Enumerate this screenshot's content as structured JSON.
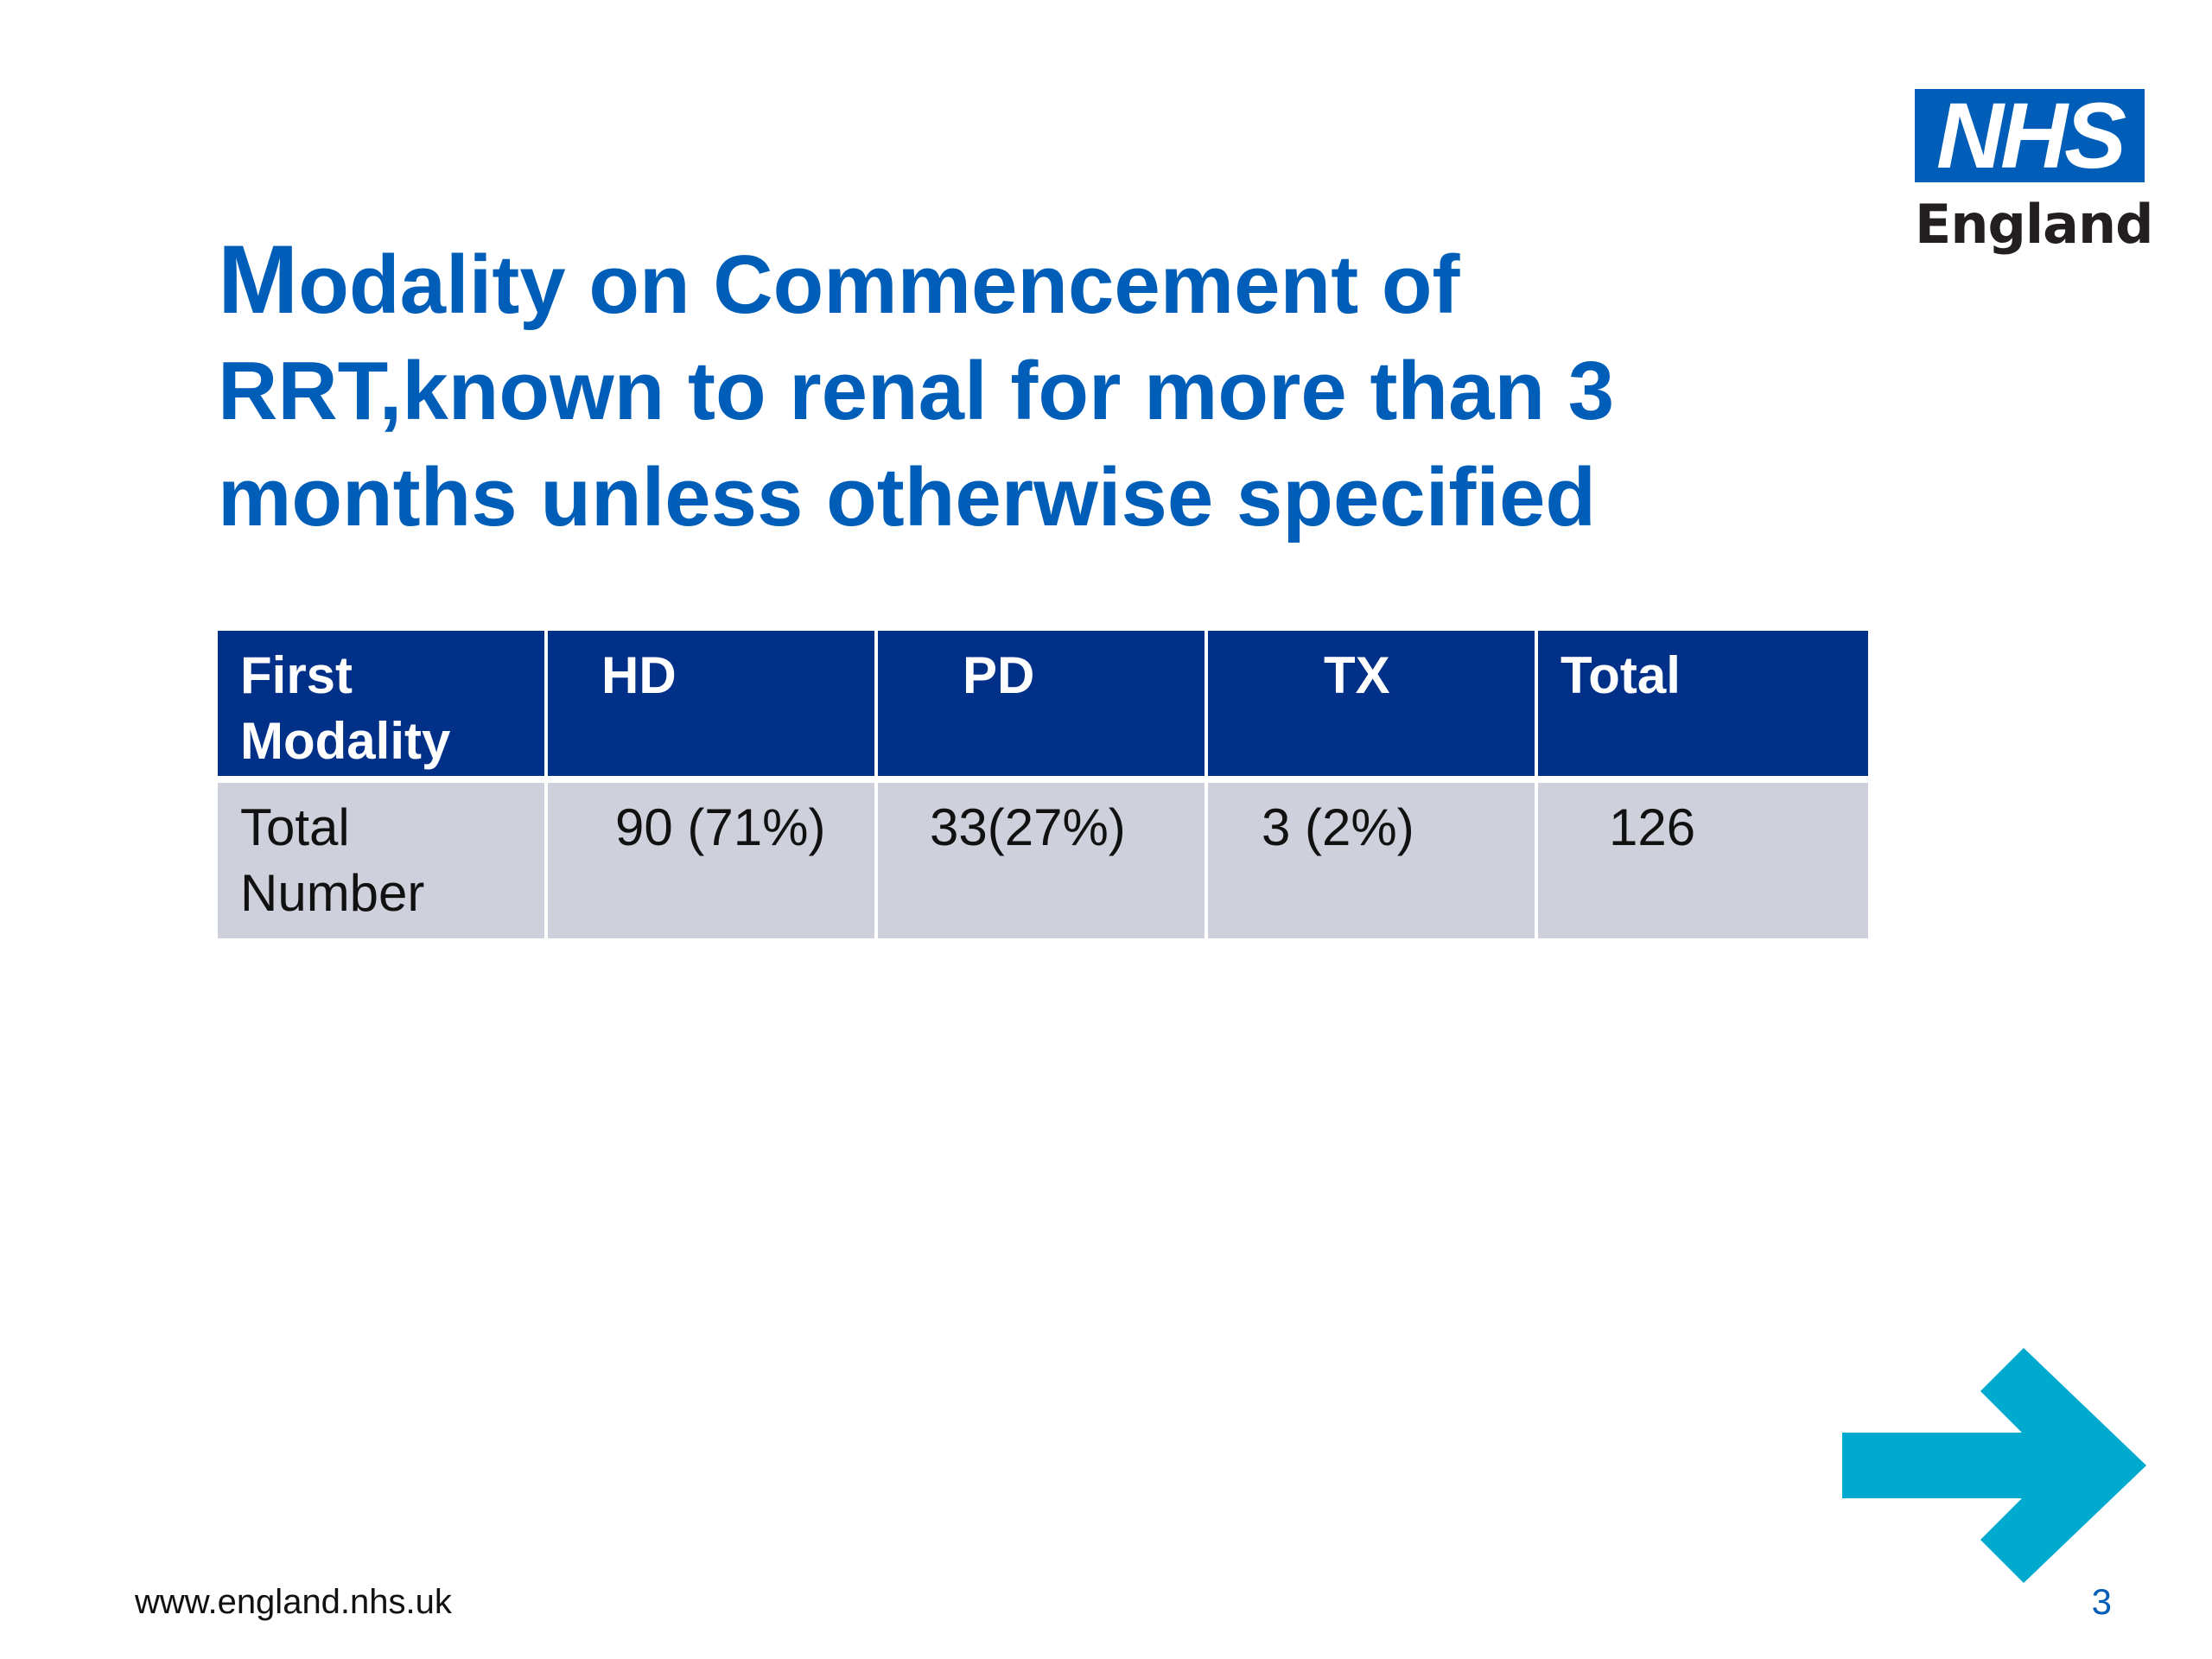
{
  "logo": {
    "mark": "NHS",
    "subtitle": "England",
    "color": "#005eb8"
  },
  "title": {
    "first_letter": "M",
    "rest": "odality on Commencement of RRT,known to renal for more than 3 months unless otherwise specified",
    "color": "#005eb8"
  },
  "table": {
    "headers": [
      "First Modality",
      "HD",
      "PD",
      "TX",
      "Total"
    ],
    "rows": [
      [
        "Total Number",
        "90 (71%)",
        "33(27%)",
        "3 (2%)",
        "126"
      ]
    ],
    "header_color": "#003087",
    "row_color": "#ced0db"
  },
  "arrow": {
    "icon": "arrow-right-icon",
    "color": "#00a9ce"
  },
  "footer": {
    "url": "www.england.nhs.uk",
    "page_number": "3"
  }
}
